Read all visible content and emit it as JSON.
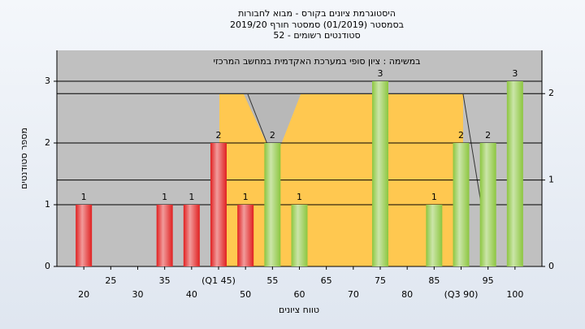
{
  "chart_data": {
    "type": "bar",
    "title": "היסטוגרמת ציונים בקורס - מבוא לחבורות",
    "subtitle": "בסמסטר (01/2019) סמסטר חורף 2019/20",
    "subtitle2": "סטודנטים רשומים - 52",
    "annotation": "במשימה : ציון סופי במערכת האקדמית במחשב המרכזי",
    "y_label": "מספר סטודנטים",
    "x_label": "טווח ציונים",
    "categories": [
      "20",
      "25",
      "30",
      "35",
      "40",
      "(Q1 45)",
      "50",
      "55",
      "60",
      "65",
      "70",
      "75",
      "80",
      "85",
      "(Q3 90)",
      "95",
      "100"
    ],
    "values": [
      1,
      0,
      0,
      1,
      1,
      2,
      1,
      2,
      1,
      0,
      0,
      3,
      0,
      1,
      2,
      2,
      3
    ],
    "colors": [
      "#e02020",
      "#e02020",
      "#e02020",
      "#e02020",
      "#e02020",
      "#e02020",
      "#e02020",
      "#8cc63f",
      "#8cc63f",
      "#8cc63f",
      "#8cc63f",
      "#8cc63f",
      "#8cc63f",
      "#8cc63f",
      "#8cc63f",
      "#8cc63f",
      "#8cc63f"
    ],
    "ylim": [
      0,
      3.5
    ],
    "yticks": [
      0,
      1,
      2,
      3
    ],
    "y2lim": [
      0,
      2.5
    ],
    "y2ticks": [
      0,
      1,
      2
    ],
    "grid": true
  }
}
